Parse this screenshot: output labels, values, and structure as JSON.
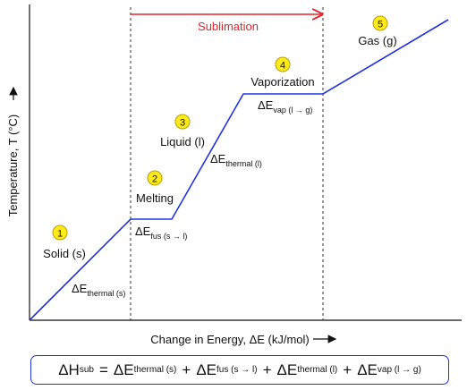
{
  "axes": {
    "ylabel": "Temperature, T (°C)",
    "xlabel": "Change in Energy, ΔE (kJ/mol)"
  },
  "sublimation": {
    "label": "Sublimation",
    "color": "#e8232a"
  },
  "curve_color": "#2233dd",
  "marker_color": "#ffeb1a",
  "stages": [
    {
      "number": "1",
      "name": "Solid (s)"
    },
    {
      "number": "2",
      "name": "Melting"
    },
    {
      "number": "3",
      "name": "Liquid (l)"
    },
    {
      "number": "4",
      "name": "Vaporization"
    },
    {
      "number": "5",
      "name": "Gas (g)"
    }
  ],
  "energy_labels": [
    {
      "delta": "ΔE",
      "sub": "thermal (s)"
    },
    {
      "delta": "ΔE",
      "sub": "fus (s → l)"
    },
    {
      "delta": "ΔE",
      "sub": "thermal (l)"
    },
    {
      "delta": "ΔE",
      "sub": "vap (l → g)"
    }
  ],
  "formula": {
    "lhs": "ΔH",
    "lhs_sub": "sub",
    "eq": "=",
    "plus": "+",
    "terms": [
      {
        "delta": "ΔE",
        "sub": "thermal (s)"
      },
      {
        "delta": "ΔE",
        "sub": "fus (s → l)"
      },
      {
        "delta": "ΔE",
        "sub": "thermal (l)"
      },
      {
        "delta": "ΔE",
        "sub": "vap (l → g)"
      }
    ]
  }
}
